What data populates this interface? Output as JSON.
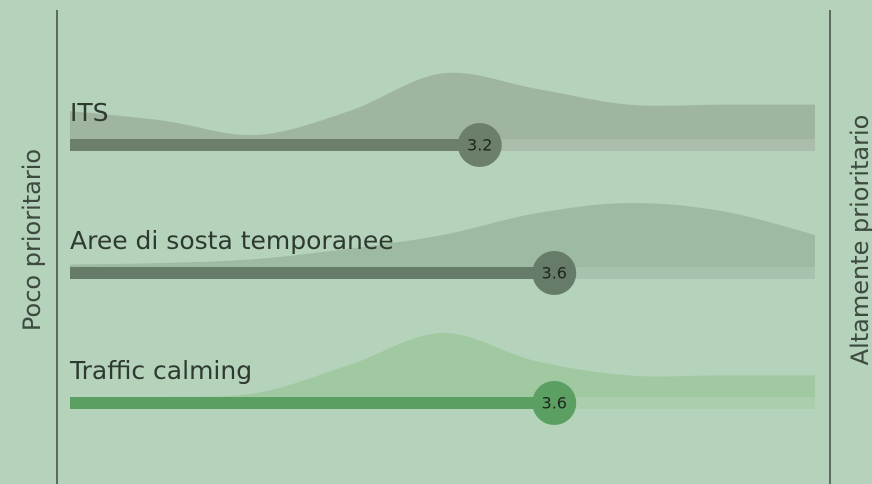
{
  "chart_data": {
    "type": "bar",
    "orientation": "horizontal",
    "left_label": "Poco prioritario",
    "right_label": "Altamente prioritario",
    "categories": [
      "ITS",
      "Aree di sosta temporanee",
      "Traffic calming"
    ],
    "values": [
      3.2,
      3.6,
      3.6
    ],
    "colors": [
      "#6b7f6a",
      "#667c68",
      "#5c9f63"
    ],
    "density_colors": [
      "#9fb5a0",
      "#9dbba2",
      "#a0c9a2"
    ],
    "xlim": [
      1,
      5
    ],
    "density_x": [
      1,
      1.5,
      2,
      2.5,
      3,
      3.5,
      4,
      4.5,
      5
    ],
    "density": [
      [
        0.5,
        0.38,
        0.2,
        0.5,
        0.97,
        0.78,
        0.58,
        0.58,
        0.58
      ],
      [
        0.18,
        0.2,
        0.25,
        0.38,
        0.55,
        0.82,
        0.95,
        0.85,
        0.55
      ],
      [
        0.15,
        0.15,
        0.2,
        0.55,
        0.95,
        0.6,
        0.42,
        0.42,
        0.42
      ]
    ]
  }
}
